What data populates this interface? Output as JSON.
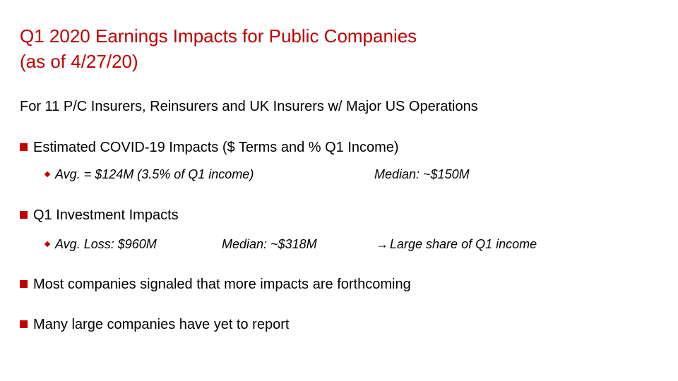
{
  "title": {
    "line1": "Q1 2020 Earnings Impacts for Public Companies",
    "line2": "(as of 4/27/20)"
  },
  "subtitle": "For 11 P/C Insurers, Reinsurers and UK Insurers w/ Major US Operations",
  "bullets": [
    {
      "text": "Estimated COVID-19 Impacts ($ Terms and % Q1 Income)",
      "sub": {
        "left": "Avg. = $124M (3.5% of Q1 income)",
        "right": "Median: ~$150M"
      }
    },
    {
      "text": "Q1 Investment Impacts",
      "sub": {
        "left": "Avg. Loss: $960M",
        "middle": "Median: ~$318M",
        "right": "Large share of Q1 income"
      }
    },
    {
      "text": "Most companies signaled that more impacts are forthcoming"
    },
    {
      "text": "Many large companies have yet to report"
    }
  ],
  "colors": {
    "accent": "#c00000",
    "text": "#000000"
  },
  "icons": {
    "bullet": "red-square-icon",
    "sub_bullet": "red-diamond-icon",
    "arrow": "right-arrow-icon"
  }
}
